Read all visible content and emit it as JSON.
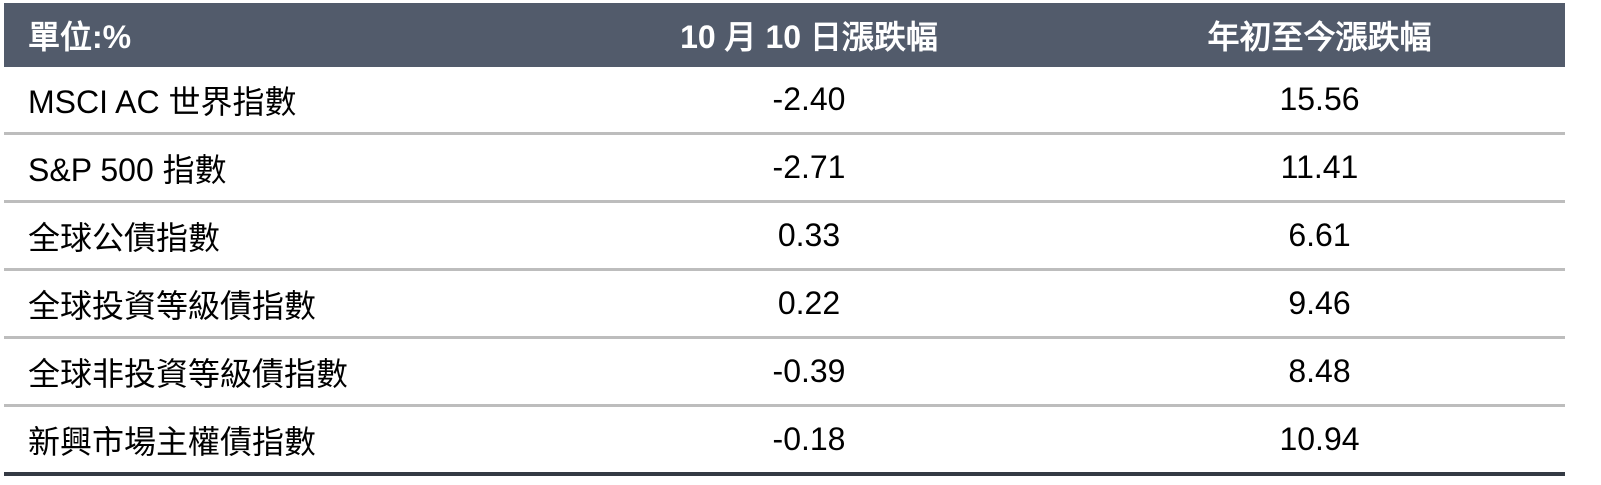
{
  "header": {
    "unit_label": "單位:%",
    "col_daily": "10 月 10 日漲跌幅",
    "col_ytd": "年初至今漲跌幅"
  },
  "rows": [
    {
      "name": "MSCI AC 世界指數",
      "daily": "-2.40",
      "ytd": "15.56"
    },
    {
      "name": "S&P 500 指數",
      "daily": "-2.71",
      "ytd": "11.41"
    },
    {
      "name": "全球公債指數",
      "daily": "0.33",
      "ytd": "6.61"
    },
    {
      "name": "全球投資等級債指數",
      "daily": "0.22",
      "ytd": "9.46"
    },
    {
      "name": "全球非投資等級債指數",
      "daily": "-0.39",
      "ytd": "8.48"
    },
    {
      "name": "新興市場主權債指數",
      "daily": "-0.18",
      "ytd": "10.94"
    }
  ],
  "colors": {
    "header_bg": "#525b6b",
    "row_divider": "#bdbdbd",
    "bottom_rule": "#343a44"
  }
}
